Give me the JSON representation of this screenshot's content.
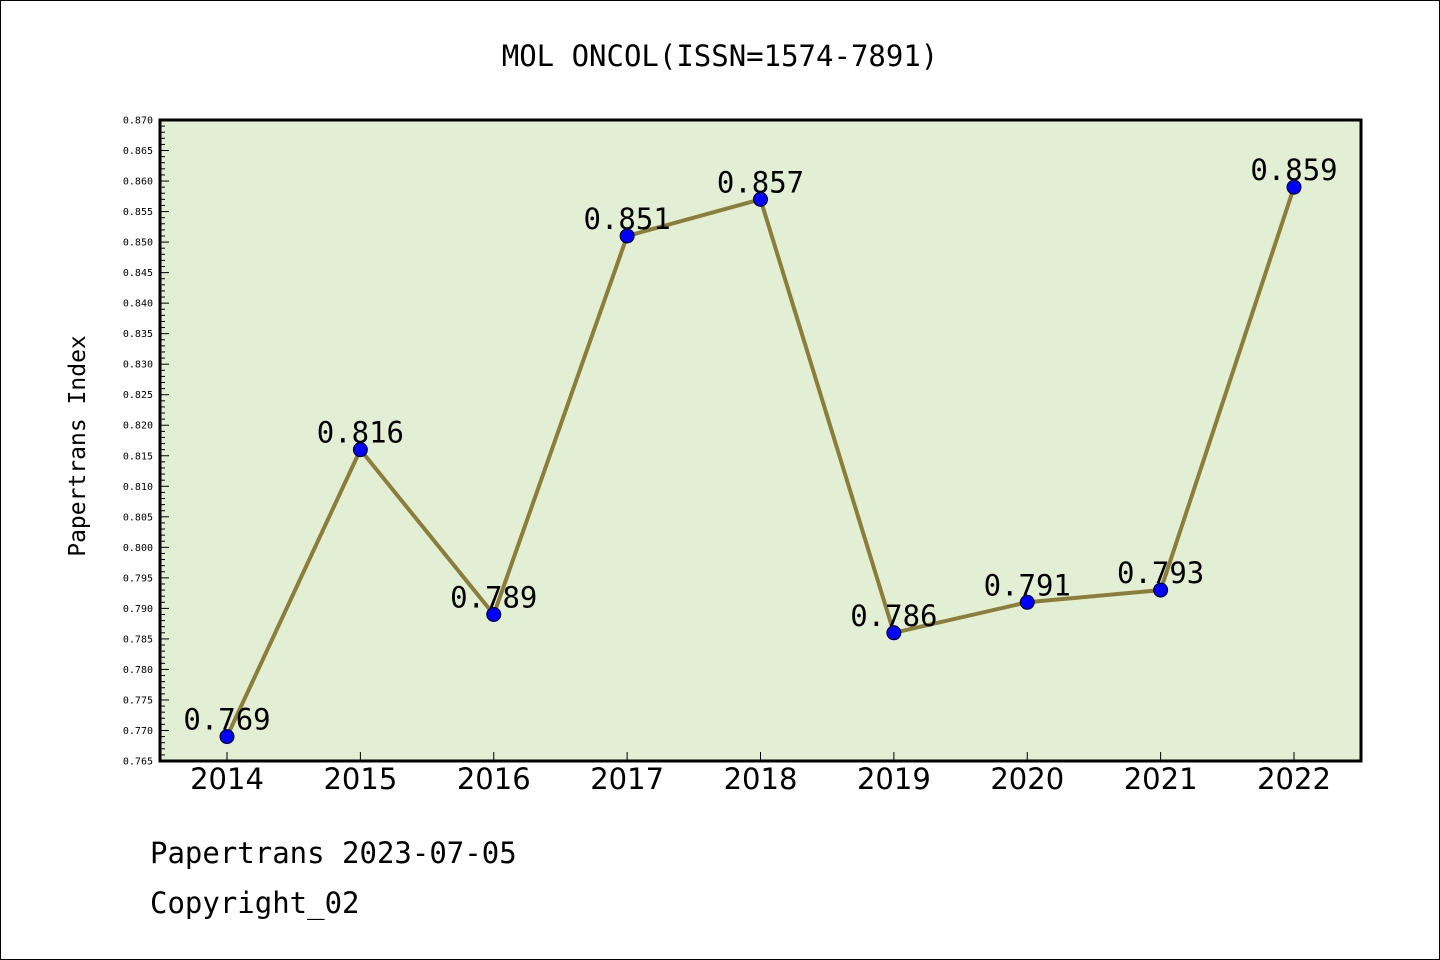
{
  "chart_data": {
    "type": "line",
    "title": "MOL ONCOL(ISSN=1574-7891)",
    "xlabel": "",
    "ylabel": "Papertrans Index",
    "categories": [
      "2014",
      "2015",
      "2016",
      "2017",
      "2018",
      "2019",
      "2020",
      "2021",
      "2022"
    ],
    "series": [
      {
        "values": [
          0.769,
          0.816,
          0.789,
          0.851,
          0.857,
          0.786,
          0.791,
          0.793,
          0.859
        ],
        "labels": [
          "0.769",
          "0.816",
          "0.789",
          "0.851",
          "0.857",
          "0.786",
          "0.791",
          "0.793",
          "0.859"
        ]
      }
    ],
    "ylim": [
      0.765,
      0.87
    ],
    "ytick_step": 0.005,
    "yticks": [
      "0.765",
      "0.770",
      "0.775",
      "0.780",
      "0.785",
      "0.790",
      "0.795",
      "0.800",
      "0.805",
      "0.810",
      "0.815",
      "0.820",
      "0.825",
      "0.830",
      "0.835",
      "0.840",
      "0.845",
      "0.850",
      "0.855",
      "0.860",
      "0.865",
      "0.870"
    ],
    "grid": false,
    "colors": {
      "plot_background": "#e2efd5",
      "line": "#8b7d3a",
      "marker": "#0000ff"
    }
  },
  "footer": {
    "date_line": "Papertrans 2023-07-05",
    "copyright": "Copyright_02"
  }
}
